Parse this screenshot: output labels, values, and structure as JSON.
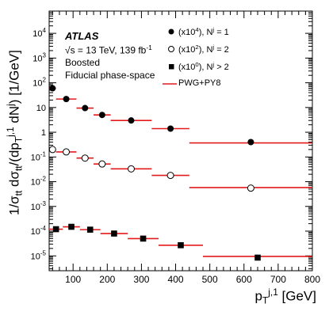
{
  "chart_data": {
    "type": "scatter",
    "title": "",
    "xlabel": "p_T^{j,1} [GeV]",
    "ylabel": "1/σ_tt dσ_tt/(dp_T^{j,1} dN^j) [1/GeV]",
    "xlim": [
      30,
      800
    ],
    "ylim_log10": [
      -5.6,
      4.9
    ],
    "log_y": true,
    "grid": false,
    "legend_position": "top-right",
    "x_ticks": [
      100,
      200,
      300,
      400,
      500,
      600,
      700,
      800
    ],
    "y_ticks": [
      "10^{-5}",
      "10^{-4}",
      "10^{-3}",
      "10^{-2}",
      "10^{-1}",
      "1",
      "10",
      "10^{2}",
      "10^{3}",
      "10^{4}"
    ],
    "annotations": [
      "ATLAS",
      "√s = 13 TeV, 139 fb^{-1}",
      "Boosted",
      "Fiducial phase-space"
    ],
    "series": [
      {
        "name": "(x10^4), N^j = 1",
        "marker": "filled-circle",
        "bins": [
          [
            30,
            50
          ],
          [
            50,
            110
          ],
          [
            110,
            160
          ],
          [
            160,
            210
          ],
          [
            210,
            330
          ],
          [
            330,
            440
          ],
          [
            440,
            800
          ]
        ],
        "x": [
          40,
          80,
          135,
          185,
          270,
          385,
          620
        ],
        "data": [
          60,
          22,
          9.5,
          5,
          3,
          1.4,
          0.4
        ],
        "mc": [
          60,
          22,
          9.5,
          5,
          3,
          1.4,
          0.37
        ]
      },
      {
        "name": "(x10^2), N^j = 2",
        "marker": "open-circle",
        "bins": [
          [
            30,
            50
          ],
          [
            50,
            110
          ],
          [
            110,
            160
          ],
          [
            160,
            210
          ],
          [
            210,
            330
          ],
          [
            330,
            440
          ],
          [
            440,
            800
          ]
        ],
        "x": [
          40,
          80,
          135,
          185,
          270,
          385,
          620
        ],
        "data": [
          0.2,
          0.16,
          0.09,
          0.052,
          0.033,
          0.018,
          0.0055
        ],
        "mc": [
          0.2,
          0.16,
          0.09,
          0.052,
          0.033,
          0.018,
          0.0058
        ]
      },
      {
        "name": "(x10^0), N^j > 2",
        "marker": "filled-square",
        "bins": [
          [
            30,
            70
          ],
          [
            70,
            120
          ],
          [
            120,
            180
          ],
          [
            180,
            260
          ],
          [
            260,
            350
          ],
          [
            350,
            480
          ],
          [
            480,
            800
          ]
        ],
        "x": [
          50,
          95,
          150,
          220,
          305,
          415,
          640
        ],
        "data": [
          0.00012,
          0.00015,
          0.000115,
          8e-05,
          5e-05,
          2.7e-05,
          8.5e-06
        ],
        "mc": [
          0.00012,
          0.00015,
          0.000115,
          8e-05,
          5e-05,
          2.7e-05,
          9.5e-06
        ]
      }
    ],
    "mc_name": "PWG+PY8",
    "mc_color": "#e31a1c"
  },
  "text": {
    "atlas": "ATLAS",
    "energy_a": "√s = 13 TeV, 139 fb",
    "energy_sup": "-1",
    "boosted": "Boosted",
    "fiducial": "Fiducial phase-space",
    "ylabel_a": "1/σ",
    "ylabel_sub1": "tt",
    "ylabel_b": " dσ",
    "ylabel_sub2": "tt",
    "ylabel_c": "/(dp",
    "ylabel_sub3": "T",
    "ylabel_sup3": "j,1",
    "ylabel_d": " dN",
    "ylabel_sup4": "j",
    "ylabel_e": ") [1/GeV]",
    "xlabel_a": "p",
    "xlabel_sub": "T",
    "xlabel_sup": "j,1",
    "xlabel_b": " [GeV]"
  },
  "legend": [
    {
      "pre": "(x10",
      "exp": "4",
      "mid": "), N",
      "sup": "j",
      "post": " = 1"
    },
    {
      "pre": "(x10",
      "exp": "2",
      "mid": "), N",
      "sup": "j",
      "post": " = 2"
    },
    {
      "pre": "(x10",
      "exp": "0",
      "mid": "), N",
      "sup": "j",
      "post": " > 2"
    },
    {
      "pre": "PWG+PY8",
      "exp": "",
      "mid": "",
      "sup": "",
      "post": ""
    }
  ]
}
